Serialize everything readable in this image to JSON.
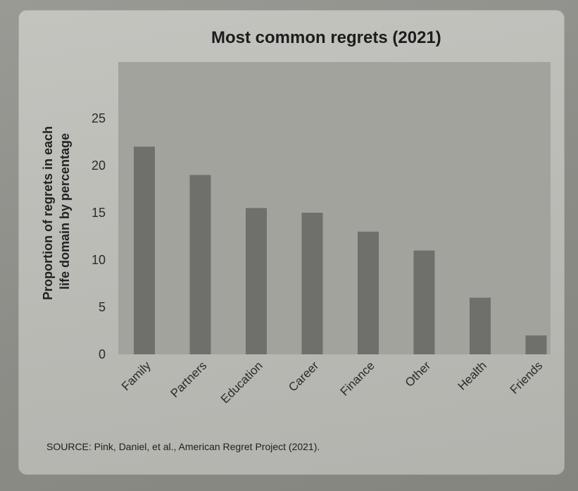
{
  "chart_data": {
    "type": "bar",
    "title": "Most common regrets (2021)",
    "ylabel_lines": [
      "Proportion of regrets in each",
      "life domain by percentage"
    ],
    "xlabel": "",
    "categories": [
      "Family",
      "Partners",
      "Education",
      "Career",
      "Finance",
      "Other",
      "Health",
      "Friends"
    ],
    "values": [
      22,
      19,
      15.5,
      15,
      13,
      11,
      6,
      2
    ],
    "yticks": [
      0,
      5,
      10,
      15,
      20,
      25
    ],
    "ylim": [
      0,
      28
    ],
    "grid": false,
    "legend": "none",
    "colors": {
      "plot_background": "#a3a39e",
      "bar": "#6f6f6b"
    }
  },
  "source": "SOURCE: Pink, Daniel, et al., American Regret Project (2021)."
}
